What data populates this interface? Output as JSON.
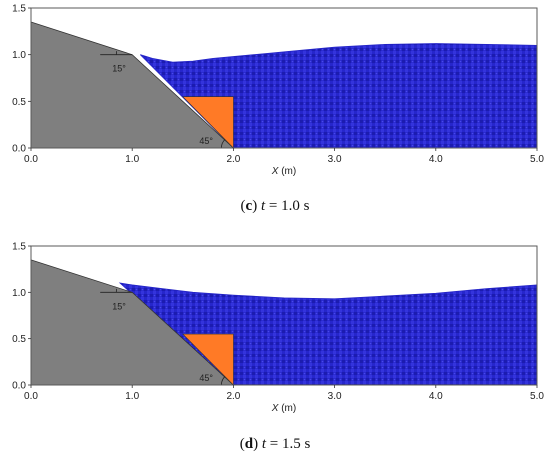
{
  "colors": {
    "water": "#2424c8",
    "water_dark": "#14148a",
    "slope": "#7f7f7f",
    "block": "#ff7a26",
    "frame": "#5a5a5a"
  },
  "chart_data": [
    {
      "type": "area",
      "panel": "c",
      "caption": {
        "letter": "c",
        "variable": "t",
        "rest": " = 1.0 s"
      },
      "xlabel": "X",
      "xunit": "(m)",
      "xlim": [
        0,
        5
      ],
      "ylim": [
        0,
        1.5
      ],
      "xticks": [
        "0.0",
        "1.0",
        "2.0",
        "3.0",
        "4.0",
        "5.0"
      ],
      "yticks": [
        "0.0",
        "0.5",
        "1.0",
        "1.5"
      ],
      "slope_profile": [
        [
          0,
          1.35
        ],
        [
          1.0,
          1.0
        ],
        [
          2.0,
          0
        ]
      ],
      "block": [
        [
          1.5,
          0.55
        ],
        [
          2.0,
          0.55
        ],
        [
          2.0,
          0
        ]
      ],
      "angle_labels": [
        "15°",
        "45°"
      ],
      "water_surface": {
        "x": [
          1.08,
          1.2,
          1.4,
          1.6,
          1.8,
          2.0,
          2.3,
          2.6,
          3.0,
          3.5,
          4.0,
          4.5,
          5.0
        ],
        "y": [
          1.0,
          0.96,
          0.92,
          0.93,
          0.96,
          0.98,
          1.01,
          1.04,
          1.08,
          1.11,
          1.12,
          1.11,
          1.1
        ]
      }
    },
    {
      "type": "area",
      "panel": "d",
      "caption": {
        "letter": "d",
        "variable": "t",
        "rest": " = 1.5 s"
      },
      "xlabel": "X",
      "xunit": "(m)",
      "xlim": [
        0,
        5
      ],
      "ylim": [
        0,
        1.5
      ],
      "xticks": [
        "0.0",
        "1.0",
        "2.0",
        "3.0",
        "4.0",
        "5.0"
      ],
      "yticks": [
        "0.0",
        "0.5",
        "1.0",
        "1.5"
      ],
      "slope_profile": [
        [
          0,
          1.35
        ],
        [
          1.0,
          1.0
        ],
        [
          2.0,
          0
        ]
      ],
      "block": [
        [
          1.5,
          0.55
        ],
        [
          2.0,
          0.55
        ],
        [
          2.0,
          0
        ]
      ],
      "angle_labels": [
        "15°",
        "45°"
      ],
      "water_surface": {
        "x": [
          0.88,
          1.0,
          1.3,
          1.6,
          2.0,
          2.5,
          3.0,
          3.5,
          4.0,
          4.5,
          5.0
        ],
        "y": [
          1.1,
          1.08,
          1.04,
          1.0,
          0.97,
          0.94,
          0.93,
          0.96,
          0.99,
          1.04,
          1.08
        ]
      }
    }
  ]
}
